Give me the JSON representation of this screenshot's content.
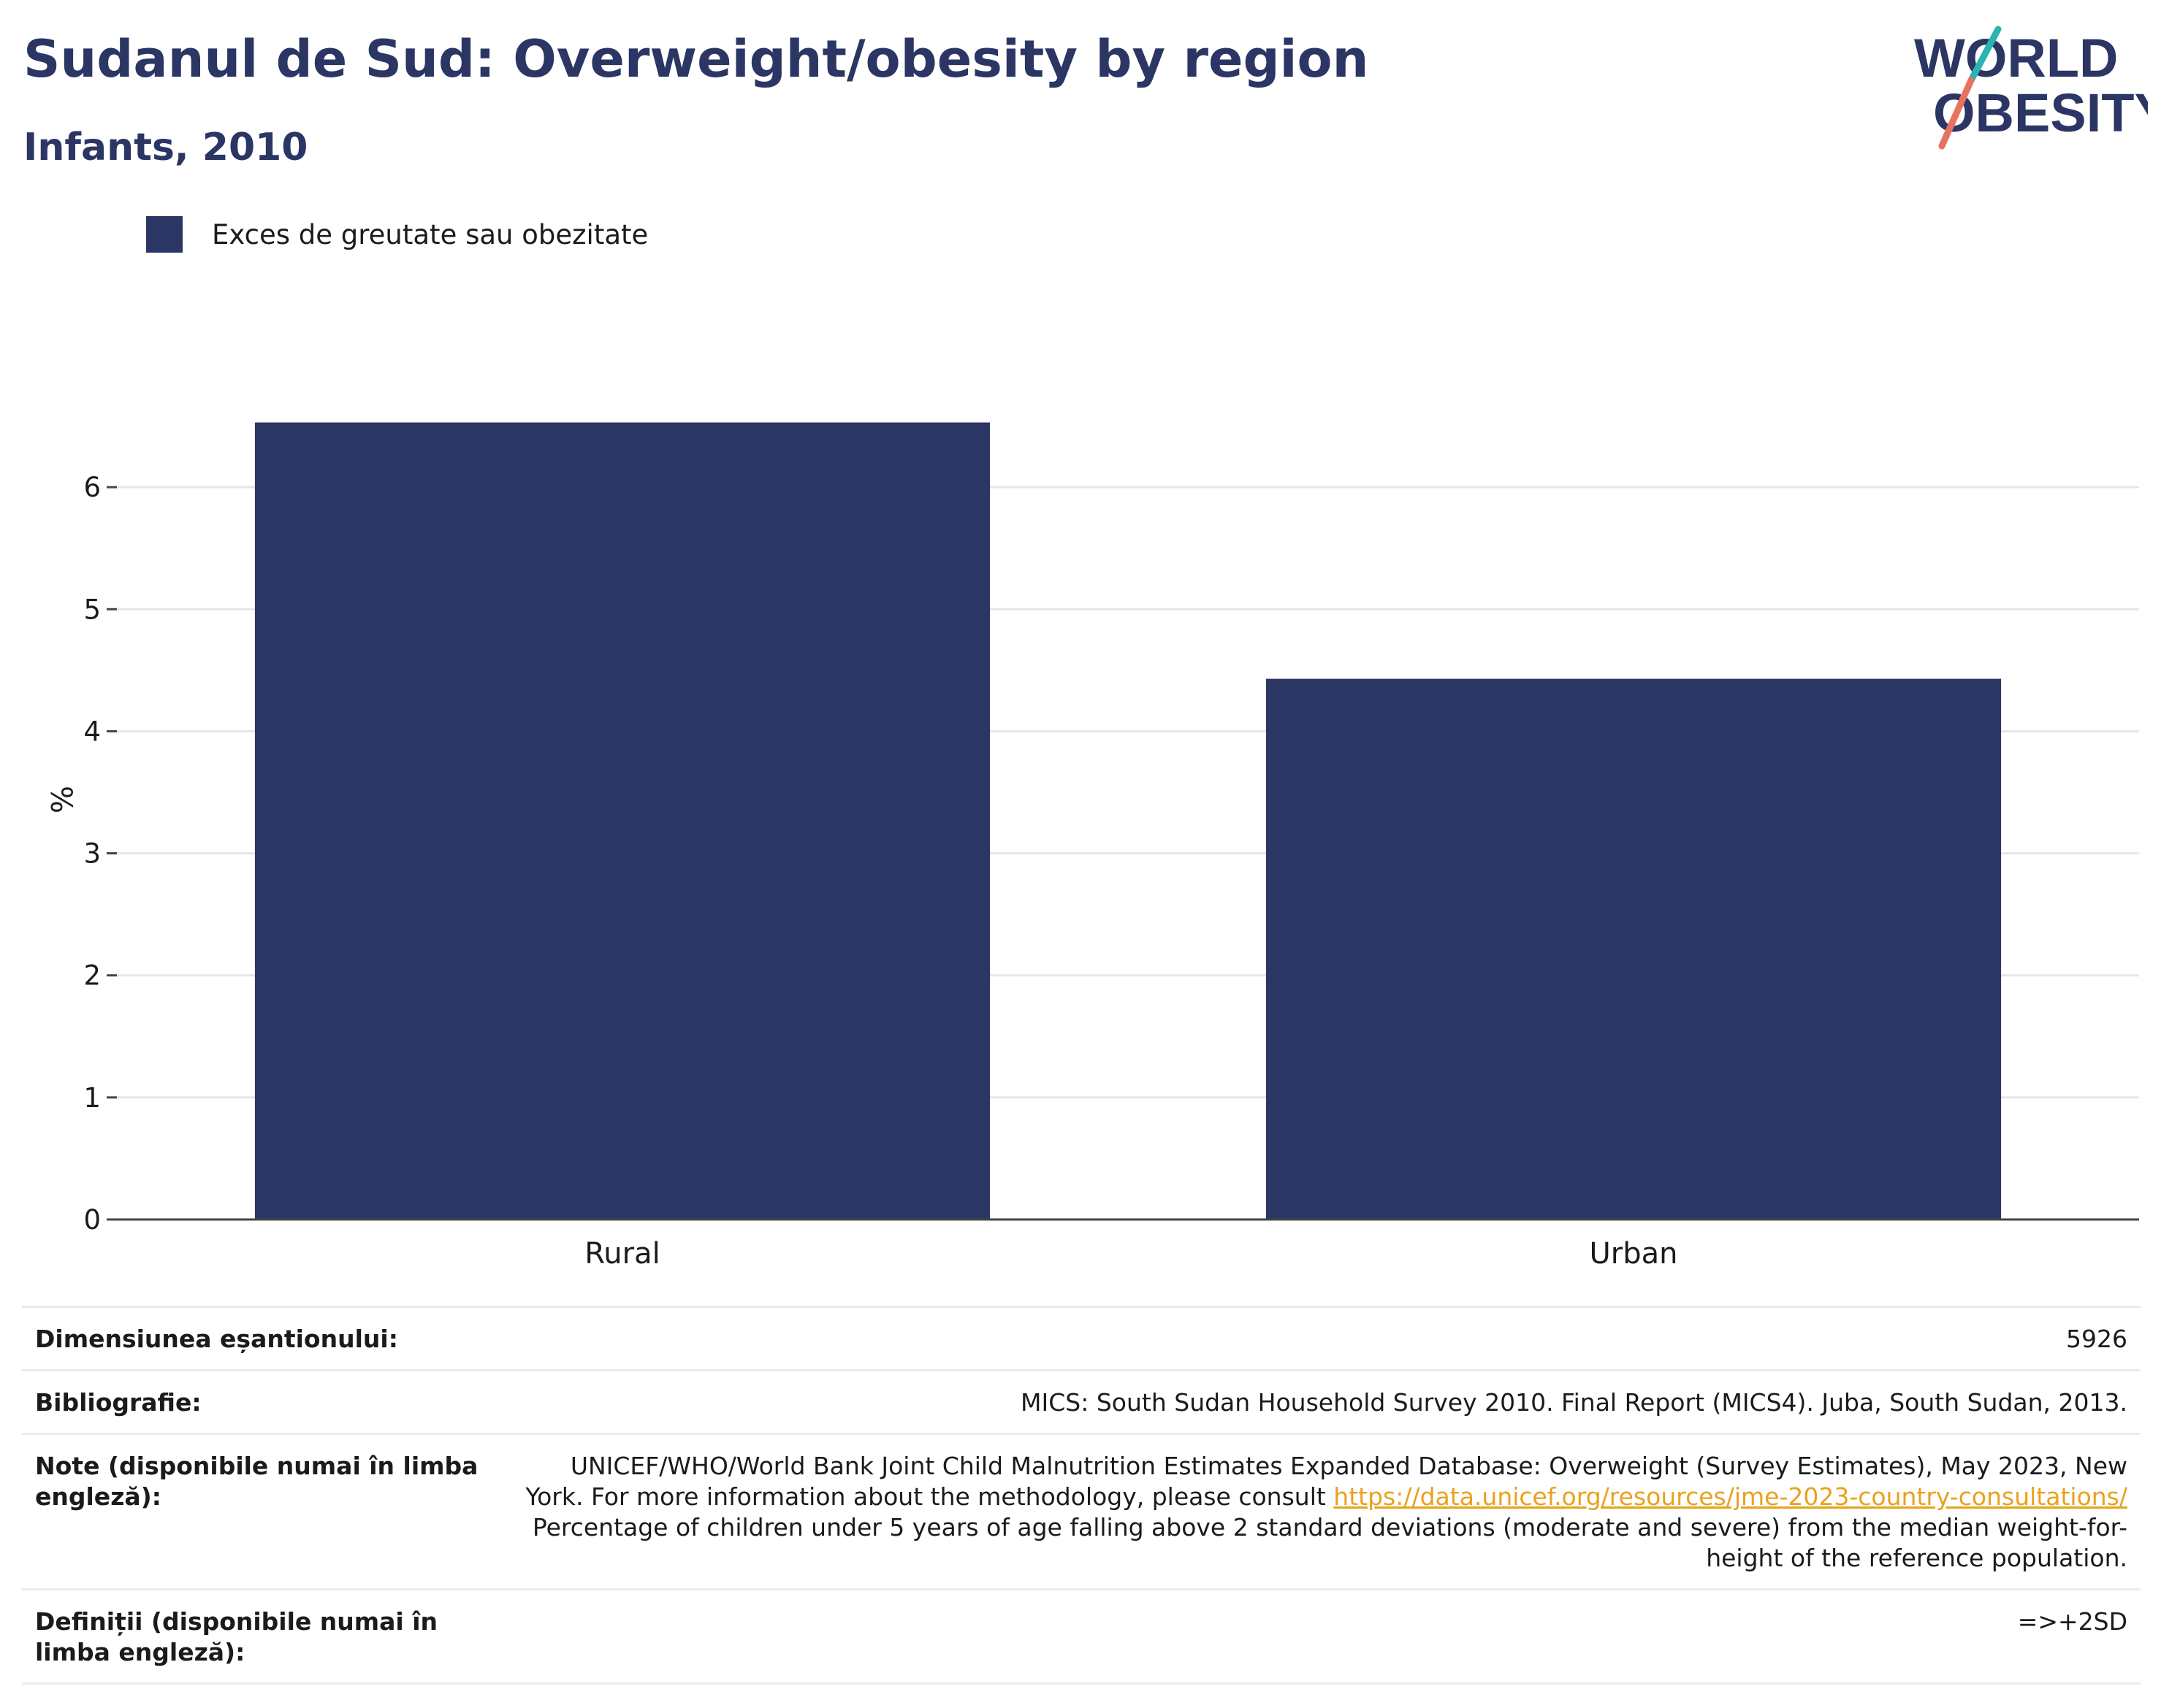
{
  "header": {
    "title": "Sudanul de Sud: Overweight/obesity by region",
    "subtitle": "Infants, 2010"
  },
  "logo": {
    "line1": "WORLD",
    "line2": "OBESITY",
    "colors": {
      "text": "#2b3664",
      "slash_top": "#2ab3b0",
      "slash_bottom": "#e8715f"
    }
  },
  "legend": {
    "label": "Exces de greutate sau obezitate",
    "color": "#2b3664"
  },
  "chart_data": {
    "type": "bar",
    "categories": [
      "Rural",
      "Urban"
    ],
    "series": [
      {
        "name": "Exces de greutate sau obezitate",
        "values": [
          6.53,
          4.43
        ],
        "color": "#2b3664"
      }
    ],
    "ylabel": "%",
    "xlabel": "",
    "ylim": [
      0,
      7
    ],
    "yticks": [
      0,
      1,
      2,
      3,
      4,
      5,
      6
    ],
    "grid": true,
    "legend_position": "top-left"
  },
  "info": {
    "sample_size_label": "Dimensiunea eșantionului:",
    "sample_size_value": "5926",
    "bibliography_label": "Bibliografie:",
    "bibliography_value": "MICS: South Sudan Household Survey 2010. Final Report (MICS4). Juba, South Sudan, 2013.",
    "notes_label": "Note (disponibile numai în limba engleză):",
    "notes_text_1": "UNICEF/WHO/World Bank Joint Child Malnutrition Estimates Expanded Database: Overweight (Survey Estimates), May 2023, New York. For more information about the methodology, please consult ",
    "notes_link": "https://data.unicef.org/resources/jme-2023-country-consultations/",
    "notes_text_2": " Percentage of children under 5 years of age falling above 2 standard deviations (moderate and severe) from the median weight-for-height of the reference population.",
    "definitions_label": "Definiții (disponibile numai în limba engleză):",
    "definitions_value": "=>+2SD"
  }
}
